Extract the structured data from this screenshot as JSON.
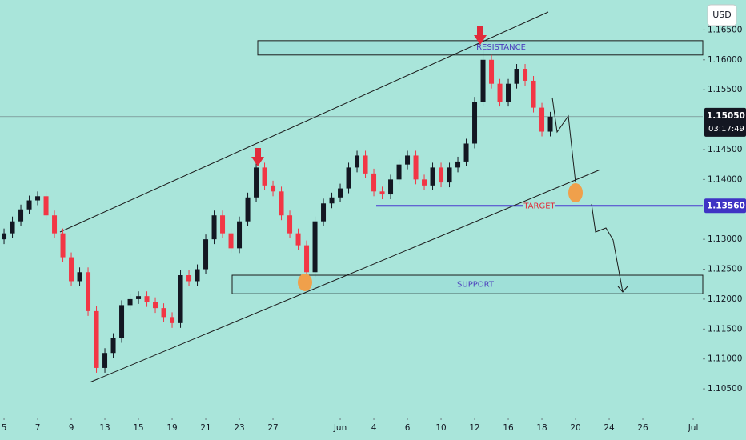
{
  "chart_data": {
    "type": "candlestick",
    "currency": "USD",
    "x": [
      0,
      0.5,
      1,
      1.5,
      2,
      2.5,
      3,
      3.5,
      4,
      4.5,
      5,
      5.5,
      6,
      6.5,
      7,
      7.5,
      8,
      8.5,
      9,
      9.5,
      10,
      10.5,
      11,
      11.5,
      12,
      12.5,
      13,
      13.5,
      14,
      14.5,
      15,
      15.5,
      16,
      16.5,
      17,
      17.5,
      18,
      18.5,
      19,
      19.5,
      20,
      20.5,
      21,
      21.5,
      22,
      22.5,
      23,
      23.5,
      24,
      24.5,
      25,
      25.5,
      26,
      26.5,
      27,
      27.5,
      28,
      28.5,
      29,
      29.5,
      30,
      30.5,
      31,
      31.5,
      32,
      32.5
    ],
    "open": [
      1.13,
      1.131,
      1.133,
      1.135,
      1.1365,
      1.1372,
      1.134,
      1.131,
      1.127,
      1.123,
      1.1245,
      1.118,
      1.1085,
      1.111,
      1.1135,
      1.119,
      1.12,
      1.1205,
      1.1195,
      1.1185,
      1.117,
      1.116,
      1.124,
      1.123,
      1.125,
      1.13,
      1.134,
      1.131,
      1.1285,
      1.133,
      1.137,
      1.142,
      1.139,
      1.138,
      1.134,
      1.131,
      1.129,
      1.1245,
      1.133,
      1.136,
      1.137,
      1.1385,
      1.142,
      1.144,
      1.141,
      1.138,
      1.1375,
      1.14,
      1.1425,
      1.144,
      1.14,
      1.139,
      1.142,
      1.1395,
      1.142,
      1.143,
      1.146,
      1.153,
      1.16,
      1.156,
      1.153,
      1.156,
      1.1585,
      1.1565,
      1.152,
      1.148
    ],
    "high": [
      1.1318,
      1.1338,
      1.1358,
      1.1373,
      1.138,
      1.138,
      1.1348,
      1.1318,
      1.1278,
      1.1253,
      1.1253,
      1.1188,
      1.1118,
      1.1143,
      1.1198,
      1.1208,
      1.1213,
      1.1213,
      1.1203,
      1.1193,
      1.1178,
      1.1248,
      1.1248,
      1.1258,
      1.1308,
      1.1348,
      1.1348,
      1.1318,
      1.1338,
      1.1378,
      1.1428,
      1.1428,
      1.1398,
      1.1388,
      1.1348,
      1.1318,
      1.1298,
      1.1338,
      1.1368,
      1.1378,
      1.1393,
      1.1428,
      1.1448,
      1.1448,
      1.1418,
      1.1388,
      1.1408,
      1.1433,
      1.1448,
      1.1448,
      1.1408,
      1.1428,
      1.1428,
      1.1428,
      1.1438,
      1.1468,
      1.1538,
      1.1618,
      1.1608,
      1.1568,
      1.1568,
      1.1593,
      1.1593,
      1.1573,
      1.1528,
      1.1513
    ],
    "low": [
      1.1292,
      1.1302,
      1.1322,
      1.1342,
      1.1357,
      1.1332,
      1.1302,
      1.1262,
      1.1222,
      1.1222,
      1.1172,
      1.1077,
      1.1077,
      1.1102,
      1.1127,
      1.1182,
      1.1192,
      1.1187,
      1.1177,
      1.1162,
      1.1152,
      1.1152,
      1.1222,
      1.1222,
      1.1242,
      1.1292,
      1.1302,
      1.1277,
      1.1277,
      1.1322,
      1.1362,
      1.1382,
      1.1372,
      1.1332,
      1.1302,
      1.1282,
      1.1237,
      1.1237,
      1.1322,
      1.1352,
      1.1362,
      1.1377,
      1.1412,
      1.1402,
      1.1372,
      1.1367,
      1.1367,
      1.1392,
      1.1417,
      1.1392,
      1.1382,
      1.1382,
      1.1387,
      1.1387,
      1.1412,
      1.1422,
      1.1452,
      1.1522,
      1.1552,
      1.1522,
      1.1522,
      1.1552,
      1.1557,
      1.1512,
      1.1472,
      1.1472
    ],
    "close": [
      1.131,
      1.133,
      1.135,
      1.1365,
      1.1372,
      1.134,
      1.131,
      1.127,
      1.123,
      1.1245,
      1.118,
      1.1085,
      1.111,
      1.1135,
      1.119,
      1.12,
      1.1205,
      1.1195,
      1.1185,
      1.117,
      1.116,
      1.124,
      1.123,
      1.125,
      1.13,
      1.134,
      1.131,
      1.1285,
      1.133,
      1.137,
      1.142,
      1.139,
      1.138,
      1.134,
      1.131,
      1.129,
      1.1245,
      1.133,
      1.136,
      1.137,
      1.1385,
      1.142,
      1.144,
      1.141,
      1.138,
      1.1375,
      1.14,
      1.1425,
      1.144,
      1.14,
      1.139,
      1.142,
      1.1395,
      1.142,
      1.143,
      1.146,
      1.153,
      1.16,
      1.156,
      1.153,
      1.156,
      1.1585,
      1.1565,
      1.152,
      1.148,
      1.1505
    ],
    "up_color": "#131722",
    "down_color": "#f23645",
    "xlim": [
      -0.24,
      41.57
    ],
    "xticks": [
      {
        "value": 0,
        "label": "5"
      },
      {
        "value": 2,
        "label": "7"
      },
      {
        "value": 4,
        "label": "9"
      },
      {
        "value": 6,
        "label": "13"
      },
      {
        "value": 8,
        "label": "15"
      },
      {
        "value": 10,
        "label": "19"
      },
      {
        "value": 12,
        "label": "21"
      },
      {
        "value": 14,
        "label": "23"
      },
      {
        "value": 16,
        "label": "27"
      },
      {
        "value": 20,
        "label": "Jun"
      },
      {
        "value": 22,
        "label": "4"
      },
      {
        "value": 24,
        "label": "6"
      },
      {
        "value": 26,
        "label": "10"
      },
      {
        "value": 28,
        "label": "12"
      },
      {
        "value": 30,
        "label": "16"
      },
      {
        "value": 32,
        "label": "18"
      },
      {
        "value": 34,
        "label": "20"
      },
      {
        "value": 36,
        "label": "24"
      },
      {
        "value": 38,
        "label": "26"
      },
      {
        "value": 41,
        "label": "Jul"
      }
    ],
    "ylim": [
      1.1002,
      1.17
    ],
    "yticks": [
      {
        "value": 1.165,
        "label": "1.16500"
      },
      {
        "value": 1.16,
        "label": "1.16000"
      },
      {
        "value": 1.155,
        "label": "1.15500"
      },
      {
        "value": 1.145,
        "label": "1.14500"
      },
      {
        "value": 1.14,
        "label": "1.14000"
      },
      {
        "value": 1.13,
        "label": "1.13000"
      },
      {
        "value": 1.125,
        "label": "1.12500"
      },
      {
        "value": 1.12,
        "label": "1.12000"
      },
      {
        "value": 1.115,
        "label": "1.11500"
      },
      {
        "value": 1.11,
        "label": "1.11000"
      },
      {
        "value": 1.105,
        "label": "1.10500"
      }
    ],
    "last_price": {
      "value": 1.1505,
      "label": "1.15050",
      "countdown": "03:17:49"
    },
    "target": {
      "value": 1.1356,
      "label": "1.13560",
      "text": "TARGET"
    },
    "zones": [
      {
        "text": "RESISTANCE",
        "low": 1.1608,
        "high": 1.1632
      },
      {
        "text": "SUPPORT",
        "low": 1.1209,
        "high": 1.124
      }
    ]
  }
}
